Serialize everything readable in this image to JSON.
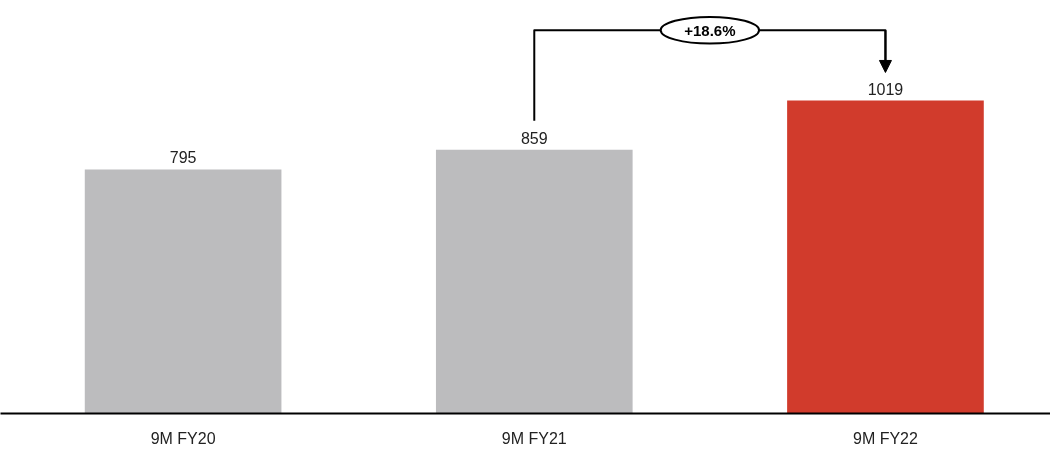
{
  "chart_data": {
    "type": "bar",
    "categories": [
      "9M FY20",
      "9M FY21",
      "9M FY22"
    ],
    "values": [
      795,
      859,
      1019
    ],
    "colors": [
      "#bcbcbe",
      "#bcbcbe",
      "#d13b2c"
    ],
    "data_labels": true,
    "annotations": [
      "+18.6%"
    ]
  }
}
